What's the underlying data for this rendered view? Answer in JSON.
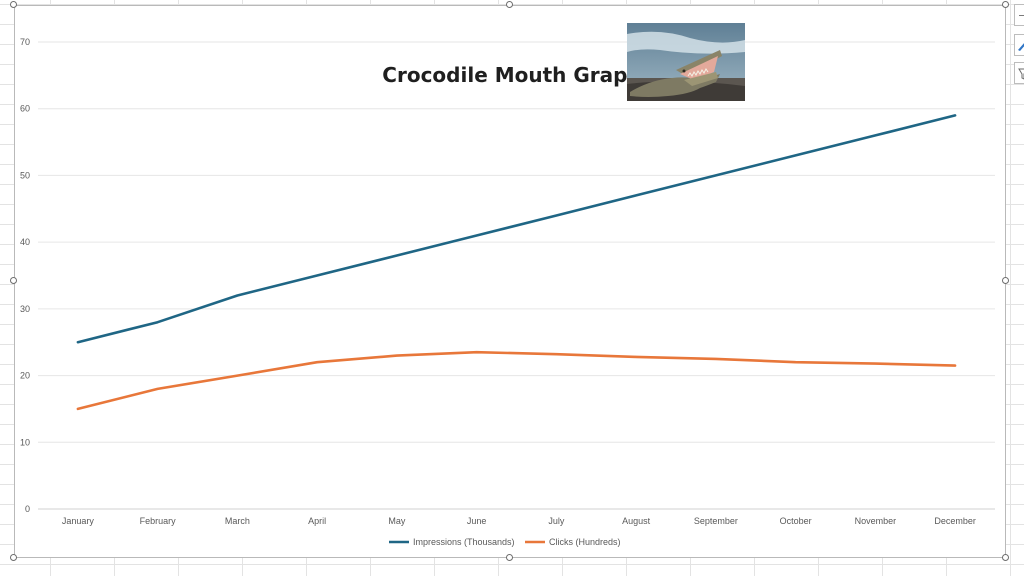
{
  "chart_data": {
    "type": "line",
    "title": "Crocodile Mouth Graph",
    "categories": [
      "January",
      "February",
      "March",
      "April",
      "May",
      "June",
      "July",
      "August",
      "September",
      "October",
      "November",
      "December"
    ],
    "series": [
      {
        "name": "Impressions (Thousands)",
        "color": "#1f6685",
        "values": [
          25,
          28,
          32,
          35,
          38,
          41,
          44,
          47,
          50,
          53,
          56,
          59
        ]
      },
      {
        "name": "Clicks (Hundreds)",
        "color": "#e8773a",
        "values": [
          15,
          18,
          20,
          22,
          23,
          23.5,
          23.2,
          22.8,
          22.5,
          22,
          21.8,
          21.5
        ]
      }
    ],
    "ylim": [
      0,
      70
    ],
    "yticks": [
      "0",
      "10",
      "20",
      "30",
      "40",
      "50",
      "60",
      "70"
    ],
    "xlabel": "",
    "ylabel": "",
    "grid": true,
    "legend": "bottom"
  },
  "image": {
    "subject": "crocodile-photo"
  },
  "toolbar_icons": [
    "chart-elements-icon",
    "chart-styles-icon",
    "chart-filters-icon"
  ]
}
